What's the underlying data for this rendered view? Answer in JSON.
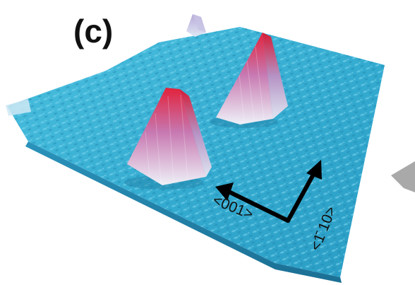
{
  "figure": {
    "panel_label": "(c)",
    "direction_labels": {
      "horizontal": "<001>",
      "vertical": "<1̄ 10>"
    },
    "colors": {
      "surface": "#3ab5d6",
      "surface_dark": "#1d8fb3",
      "surface_light": "#6fd0ea",
      "island_peak": "#e0203a",
      "island_mid": "#d78ab8",
      "island_base": "#e9eef7",
      "arrows": "#000000"
    },
    "islands": [
      {
        "name": "large-front-island"
      },
      {
        "name": "rear-island"
      },
      {
        "name": "far-small-island"
      }
    ]
  }
}
